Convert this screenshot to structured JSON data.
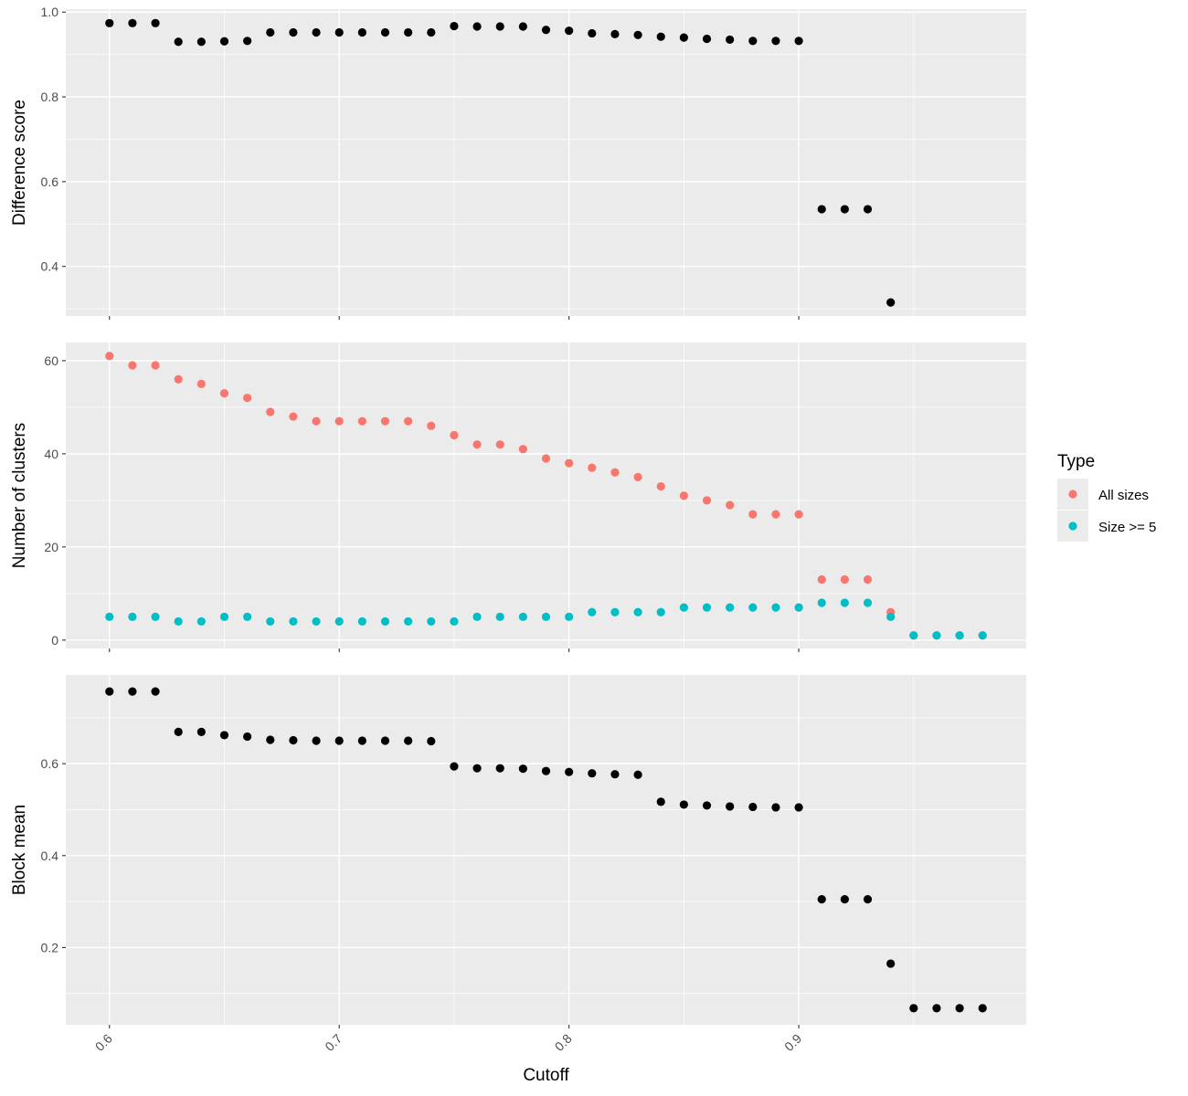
{
  "chart_data": {
    "type": "scatter",
    "shared_x": {
      "label": "Cutoff",
      "lim": [
        0.581,
        0.999
      ],
      "ticks": [
        0.6,
        0.7,
        0.8,
        0.9
      ],
      "tick_labels": [
        "0.6",
        "0.7",
        "0.8",
        "0.9"
      ],
      "minor": [
        0.65,
        0.75,
        0.85,
        0.95
      ]
    },
    "legend": {
      "title": "Type",
      "position": "right",
      "entries": [
        {
          "label": "All sizes",
          "color": "#F8766D"
        },
        {
          "label": "Size >= 5",
          "color": "#00BFC4"
        }
      ]
    },
    "panels": [
      {
        "ylabel": "Difference score",
        "ylim": [
          0.283,
          1.007
        ],
        "yticks": [
          0.4,
          0.6,
          0.8,
          1.0
        ],
        "ytick_labels": [
          "0.4",
          "0.6",
          "0.8",
          "1.0"
        ],
        "yminor": [
          0.3,
          0.5,
          0.7,
          0.9
        ],
        "series": [
          {
            "color": "#000000",
            "x": [
              0.6,
              0.61,
              0.62,
              0.63,
              0.64,
              0.65,
              0.66,
              0.67,
              0.68,
              0.69,
              0.7,
              0.71,
              0.72,
              0.73,
              0.74,
              0.75,
              0.76,
              0.77,
              0.78,
              0.79,
              0.8,
              0.81,
              0.82,
              0.83,
              0.84,
              0.85,
              0.86,
              0.87,
              0.88,
              0.89,
              0.9,
              0.91,
              0.92,
              0.93,
              0.94
            ],
            "y": [
              0.974,
              0.974,
              0.974,
              0.93,
              0.93,
              0.931,
              0.932,
              0.952,
              0.952,
              0.952,
              0.952,
              0.952,
              0.952,
              0.952,
              0.952,
              0.967,
              0.966,
              0.966,
              0.966,
              0.958,
              0.956,
              0.95,
              0.948,
              0.946,
              0.942,
              0.94,
              0.937,
              0.935,
              0.932,
              0.932,
              0.932,
              0.535,
              0.535,
              0.535,
              0.315
            ]
          }
        ]
      },
      {
        "ylabel": "Number of clusters",
        "ylim": [
          -1.8,
          63.9
        ],
        "yticks": [
          0,
          20,
          40,
          60
        ],
        "ytick_labels": [
          "0",
          "20",
          "40",
          "60"
        ],
        "yminor": [
          10,
          30,
          50
        ],
        "series": [
          {
            "name": "All sizes",
            "color": "#F8766D",
            "x": [
              0.6,
              0.61,
              0.62,
              0.63,
              0.64,
              0.65,
              0.66,
              0.67,
              0.68,
              0.69,
              0.7,
              0.71,
              0.72,
              0.73,
              0.74,
              0.75,
              0.76,
              0.77,
              0.78,
              0.79,
              0.8,
              0.81,
              0.82,
              0.83,
              0.84,
              0.85,
              0.86,
              0.87,
              0.88,
              0.89,
              0.9,
              0.91,
              0.92,
              0.93,
              0.94,
              0.95,
              0.96,
              0.97,
              0.98
            ],
            "y": [
              61,
              59,
              59,
              56,
              55,
              53,
              52,
              49,
              48,
              47,
              47,
              47,
              47,
              47,
              46,
              44,
              42,
              42,
              41,
              39,
              38,
              37,
              36,
              35,
              33,
              31,
              30,
              29,
              27,
              27,
              27,
              13,
              13,
              13,
              6,
              1,
              1,
              1,
              1
            ]
          },
          {
            "name": "Size >= 5",
            "color": "#00BFC4",
            "x": [
              0.6,
              0.61,
              0.62,
              0.63,
              0.64,
              0.65,
              0.66,
              0.67,
              0.68,
              0.69,
              0.7,
              0.71,
              0.72,
              0.73,
              0.74,
              0.75,
              0.76,
              0.77,
              0.78,
              0.79,
              0.8,
              0.81,
              0.82,
              0.83,
              0.84,
              0.85,
              0.86,
              0.87,
              0.88,
              0.89,
              0.9,
              0.91,
              0.92,
              0.93,
              0.94,
              0.95,
              0.96,
              0.97,
              0.98
            ],
            "y": [
              5,
              5,
              5,
              4,
              4,
              5,
              5,
              4,
              4,
              4,
              4,
              4,
              4,
              4,
              4,
              4,
              5,
              5,
              5,
              5,
              5,
              6,
              6,
              6,
              6,
              7,
              7,
              7,
              7,
              7,
              7,
              8,
              8,
              8,
              5,
              1,
              1,
              1,
              1
            ]
          }
        ]
      },
      {
        "ylabel": "Block mean",
        "ylim": [
          0.032,
          0.793
        ],
        "yticks": [
          0.2,
          0.4,
          0.6
        ],
        "ytick_labels": [
          "0.2",
          "0.4",
          "0.6"
        ],
        "yminor": [
          0.1,
          0.3,
          0.5,
          0.7
        ],
        "series": [
          {
            "color": "#000000",
            "x": [
              0.6,
              0.61,
              0.62,
              0.63,
              0.64,
              0.65,
              0.66,
              0.67,
              0.68,
              0.69,
              0.7,
              0.71,
              0.72,
              0.73,
              0.74,
              0.75,
              0.76,
              0.77,
              0.78,
              0.79,
              0.8,
              0.81,
              0.82,
              0.83,
              0.84,
              0.85,
              0.86,
              0.87,
              0.88,
              0.89,
              0.9,
              0.91,
              0.92,
              0.93,
              0.94,
              0.95,
              0.96,
              0.97,
              0.98
            ],
            "y": [
              0.757,
              0.757,
              0.757,
              0.669,
              0.669,
              0.662,
              0.659,
              0.652,
              0.651,
              0.65,
              0.65,
              0.65,
              0.65,
              0.65,
              0.649,
              0.594,
              0.59,
              0.59,
              0.589,
              0.584,
              0.582,
              0.579,
              0.577,
              0.576,
              0.517,
              0.511,
              0.509,
              0.507,
              0.506,
              0.505,
              0.505,
              0.305,
              0.305,
              0.305,
              0.165,
              0.068,
              0.068,
              0.068,
              0.068
            ]
          }
        ]
      }
    ]
  }
}
